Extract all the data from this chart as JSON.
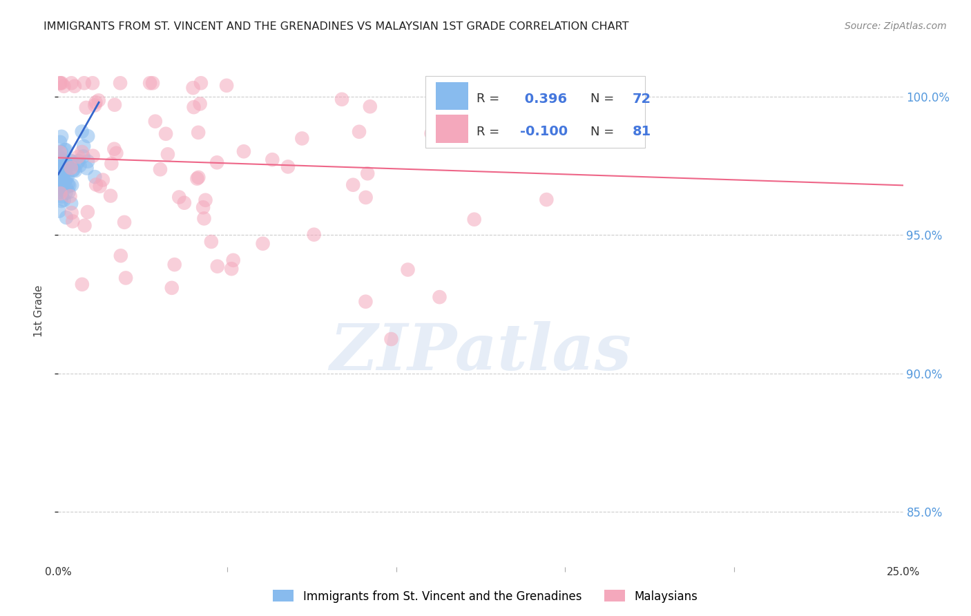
{
  "title": "IMMIGRANTS FROM ST. VINCENT AND THE GRENADINES VS MALAYSIAN 1ST GRADE CORRELATION CHART",
  "source": "Source: ZipAtlas.com",
  "ylabel": "1st Grade",
  "ytick_labels": [
    "100.0%",
    "95.0%",
    "90.0%",
    "85.0%"
  ],
  "ytick_values": [
    1.0,
    0.95,
    0.9,
    0.85
  ],
  "xlim": [
    0.0,
    0.25
  ],
  "ylim": [
    0.83,
    1.015
  ],
  "R_blue": 0.396,
  "N_blue": 72,
  "R_pink": -0.1,
  "N_pink": 81,
  "blue_color": "#88bbee",
  "pink_color": "#f4a8bc",
  "blue_line_color": "#3366cc",
  "pink_line_color": "#ee6688",
  "legend_label_blue": "Immigrants from St. Vincent and the Grenadines",
  "legend_label_pink": "Malaysians",
  "watermark": "ZIPatlas",
  "blue_trend_x": [
    0.0,
    0.012
  ],
  "blue_trend_y": [
    0.972,
    0.998
  ],
  "pink_trend_x": [
    0.0,
    0.25
  ],
  "pink_trend_y": [
    0.978,
    0.968
  ]
}
